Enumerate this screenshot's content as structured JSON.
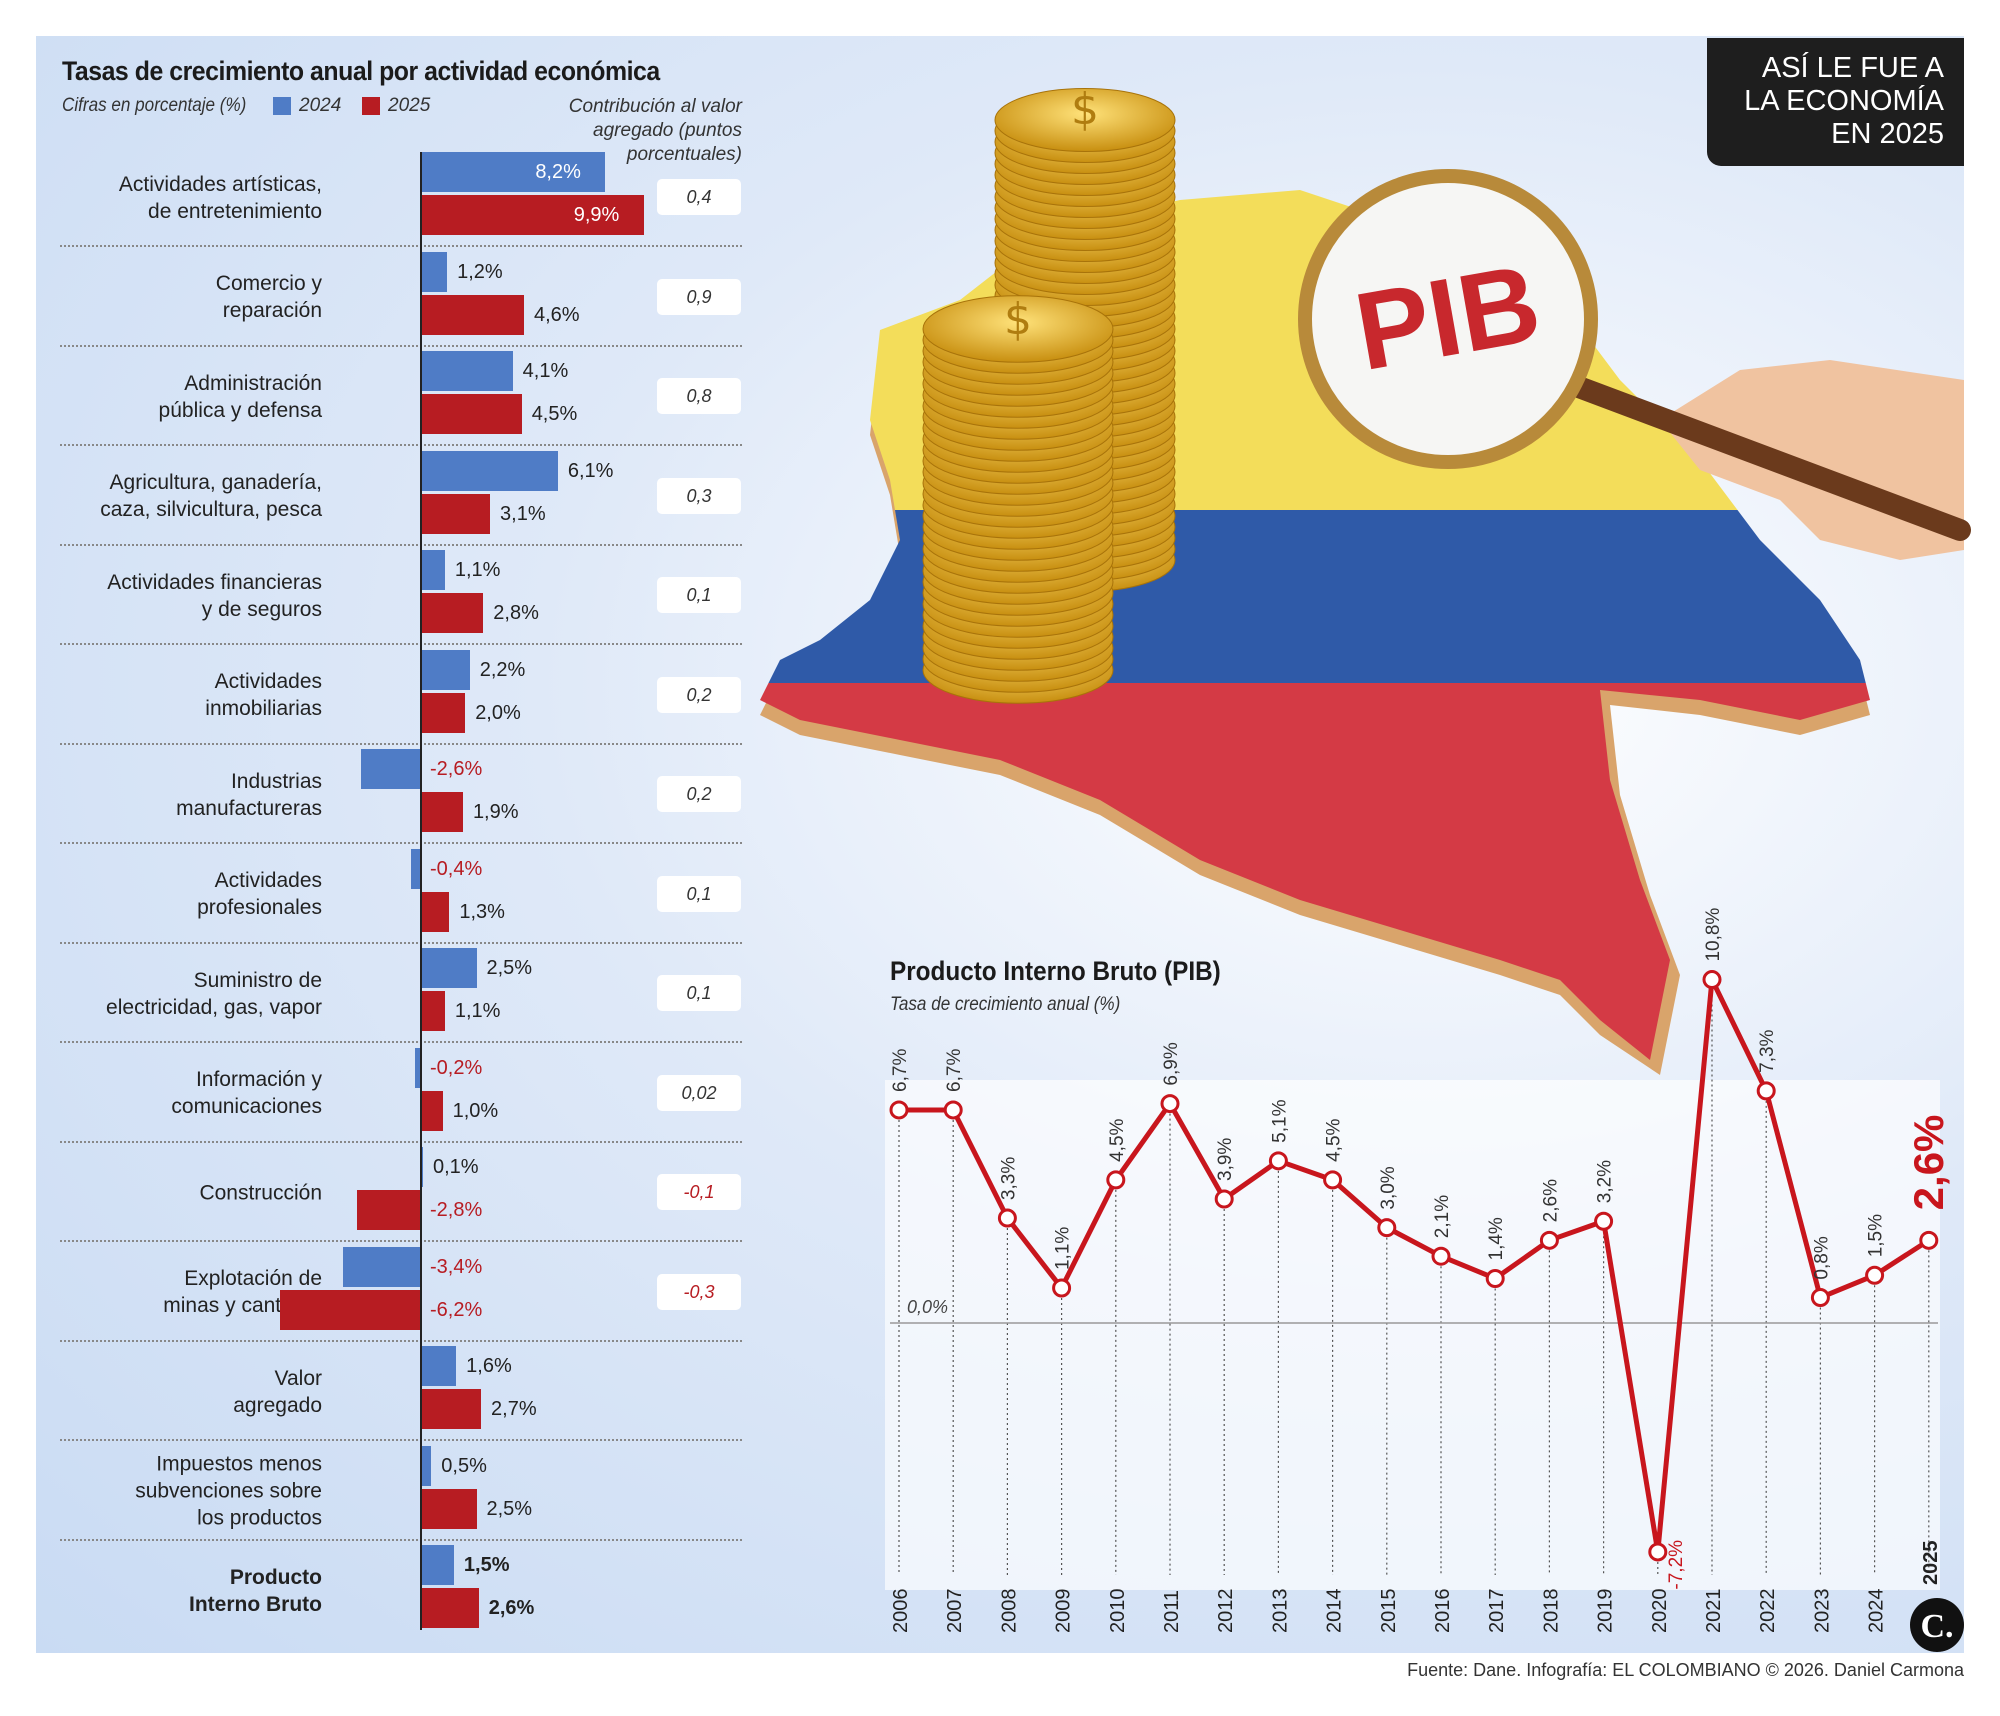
{
  "badge": "ASÍ LE FUE A\nLA ECONOMÍA\nEN 2025",
  "footer": "Fuente: Dane. Infografía: EL COLOMBIANO © 2026. Daniel Carmona",
  "illustration": {
    "magnifier_text": "PIB",
    "logo_text": "C."
  },
  "colors": {
    "y2024": "#4f7cc6",
    "y2025": "#b71c22",
    "line": "#c8161d"
  },
  "chart_data": [
    {
      "type": "bar",
      "orientation": "horizontal",
      "title": "Tasas de crecimiento anual por actividad económica",
      "subtitle": "Cifras en porcentaje (%)",
      "contribution_header": "Contribución al valor\nagregado (puntos\nporcentuales)",
      "series": [
        {
          "name": "2024"
        },
        {
          "name": "2025"
        }
      ],
      "rows": [
        {
          "label": "Actividades artísticas,\nde entretenimiento",
          "v2024": 8.2,
          "v2025": 9.9,
          "t2024": "8,2%",
          "t2025": "9,9%",
          "contribution": "0,4"
        },
        {
          "label": "Comercio y\nreparación",
          "v2024": 1.2,
          "v2025": 4.6,
          "t2024": "1,2%",
          "t2025": "4,6%",
          "contribution": "0,9"
        },
        {
          "label": "Administración\npública y defensa",
          "v2024": 4.1,
          "v2025": 4.5,
          "t2024": "4,1%",
          "t2025": "4,5%",
          "contribution": "0,8"
        },
        {
          "label": "Agricultura, ganadería,\ncaza, silvicultura, pesca",
          "v2024": 6.1,
          "v2025": 3.1,
          "t2024": "6,1%",
          "t2025": "3,1%",
          "contribution": "0,3"
        },
        {
          "label": "Actividades financieras\ny de seguros",
          "v2024": 1.1,
          "v2025": 2.8,
          "t2024": "1,1%",
          "t2025": "2,8%",
          "contribution": "0,1"
        },
        {
          "label": "Actividades\ninmobiliarias",
          "v2024": 2.2,
          "v2025": 2.0,
          "t2024": "2,2%",
          "t2025": "2,0%",
          "contribution": "0,2"
        },
        {
          "label": "Industrias\nmanufactureras",
          "v2024": -2.6,
          "v2025": 1.9,
          "t2024": "-2,6%",
          "t2025": "1,9%",
          "contribution": "0,2"
        },
        {
          "label": "Actividades\nprofesionales",
          "v2024": -0.4,
          "v2025": 1.3,
          "t2024": "-0,4%",
          "t2025": "1,3%",
          "contribution": "0,1"
        },
        {
          "label": "Suministro de\nelectricidad, gas, vapor",
          "v2024": 2.5,
          "v2025": 1.1,
          "t2024": "2,5%",
          "t2025": "1,1%",
          "contribution": "0,1"
        },
        {
          "label": "Información y\ncomunicaciones",
          "v2024": -0.2,
          "v2025": 1.0,
          "t2024": "-0,2%",
          "t2025": "1,0%",
          "contribution": "0,02"
        },
        {
          "label": "Construcción",
          "v2024": 0.1,
          "v2025": -2.8,
          "t2024": "0,1%",
          "t2025": "-2,8%",
          "contribution": "-0,1"
        },
        {
          "label": "Explotación de\nminas y canteras",
          "v2024": -3.4,
          "v2025": -6.2,
          "t2024": "-3,4%",
          "t2025": "-6,2%",
          "contribution": "-0,3"
        },
        {
          "label": "Valor\nagregado",
          "v2024": 1.6,
          "v2025": 2.7,
          "t2024": "1,6%",
          "t2025": "2,7%",
          "contribution": ""
        },
        {
          "label": "Impuestos menos\nsubvenciones sobre\nlos productos",
          "v2024": 0.5,
          "v2025": 2.5,
          "t2024": "0,5%",
          "t2025": "2,5%",
          "contribution": ""
        },
        {
          "label": "Producto\nInterno Bruto",
          "v2024": 1.5,
          "v2025": 2.6,
          "t2024": "1,5%",
          "t2025": "2,6%",
          "contribution": "",
          "bold": true
        }
      ]
    },
    {
      "type": "line",
      "title": "Producto Interno Bruto (PIB)",
      "subtitle": "Tasa de crecimiento anual (%)",
      "zero_label": "0,0%",
      "x": [
        "2006",
        "2007",
        "2008",
        "2009",
        "2010",
        "2011",
        "2012",
        "2013",
        "2014",
        "2015",
        "2016",
        "2017",
        "2018",
        "2019",
        "2020",
        "2021",
        "2022",
        "2023",
        "2024",
        "2025"
      ],
      "y": [
        6.7,
        6.7,
        3.3,
        1.1,
        4.5,
        6.9,
        3.9,
        5.1,
        4.5,
        3.0,
        2.1,
        1.4,
        2.6,
        3.2,
        -7.2,
        10.8,
        7.3,
        0.8,
        1.5,
        2.6
      ],
      "labels": [
        "6,7%",
        "6,7%",
        "3,3%",
        "1,1%",
        "4,5%",
        "6,9%",
        "3,9%",
        "5,1%",
        "4,5%",
        "3,0%",
        "2,1%",
        "1,4%",
        "2,6%",
        "3,2%",
        "-7,2%",
        "10,8%",
        "7,3%",
        "0,8%",
        "1,5%",
        "2,6%"
      ],
      "highlight": "2025"
    }
  ]
}
